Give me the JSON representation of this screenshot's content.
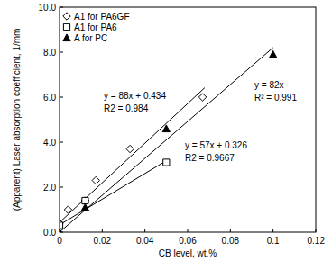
{
  "chart_data": {
    "type": "scatter",
    "x_label": "CB level, wt.%",
    "y_label": "(Apparent) Laser absorption coefficient, 1/mm",
    "xlim": [
      0,
      0.12
    ],
    "xticks": [
      0,
      0.02,
      0.04,
      0.06,
      0.08,
      0.1,
      0.12
    ],
    "ylim": [
      0,
      10
    ],
    "yticks": [
      {
        "value": 0,
        "label": "0.0"
      },
      {
        "value": 2,
        "label": "2.0"
      },
      {
        "value": 4,
        "label": "4.0"
      },
      {
        "value": 6,
        "label": "6.0"
      },
      {
        "value": 8,
        "label": "8.0"
      },
      {
        "value": 10,
        "label": "10.0"
      }
    ],
    "grid": false,
    "legend": "upper left",
    "series": [
      {
        "name": "A1 for PA6GF",
        "color": "#000000",
        "marker": "open-diamond",
        "x": [
          0,
          0.004,
          0.012,
          0.017,
          0.033,
          0.067
        ],
        "values": [
          0.4,
          1.0,
          1.4,
          2.3,
          3.7,
          6.0
        ],
        "fit": {
          "x": [
            0,
            0.068
          ],
          "values": [
            0.434,
            6.418
          ]
        },
        "annotation": [
          "y = 88x + 0.434",
          "R2 = 0.984"
        ]
      },
      {
        "name": "A1 for PA6",
        "color": "#000000",
        "marker": "open-square",
        "x": [
          0,
          0.012,
          0.05
        ],
        "values": [
          0.3,
          1.4,
          3.1
        ],
        "fit": {
          "x": [
            0,
            0.05
          ],
          "values": [
            0.326,
            3.176
          ]
        },
        "annotation": [
          "y = 57x + 0.326",
          "R2 = 0.9667"
        ]
      },
      {
        "name": "A for PC",
        "color": "#000000",
        "marker": "filled-triangle",
        "x": [
          0,
          0.012,
          0.05,
          0.1
        ],
        "values": [
          0.0,
          1.1,
          4.6,
          7.9
        ],
        "fit": {
          "x": [
            0,
            0.1
          ],
          "values": [
            0,
            8.2
          ]
        },
        "annotation": [
          "y = 82x",
          "R² = 0.991"
        ]
      }
    ]
  }
}
